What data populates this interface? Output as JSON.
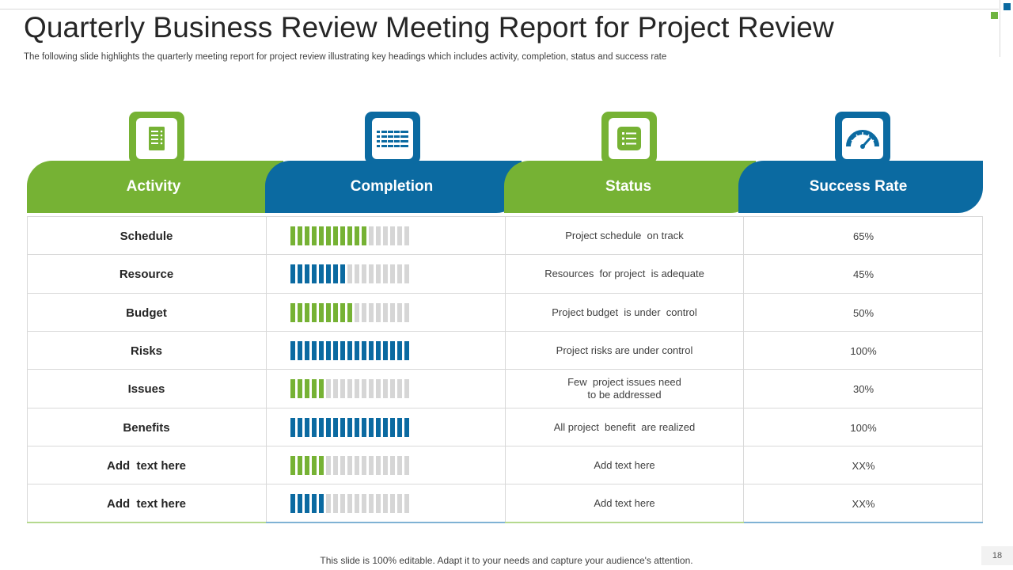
{
  "header": {
    "title": "Quarterly Business Review Meeting Report for Project Review",
    "subtitle": "The following slide highlights the quarterly meeting report for project review illustrating key headings which includes activity, completion, status and success rate"
  },
  "colors": {
    "green": "#76b234",
    "blue": "#0b6aa1",
    "empty": "#d6d6d6"
  },
  "columns": [
    {
      "label": "Activity",
      "icon": "document-list-icon",
      "color": "green"
    },
    {
      "label": "Completion",
      "icon": "progress-bars-icon",
      "color": "blue"
    },
    {
      "label": "Status",
      "icon": "checklist-icon",
      "color": "green"
    },
    {
      "label": "Success Rate",
      "icon": "speedometer-icon",
      "color": "blue"
    }
  ],
  "rows": [
    {
      "activity": "Schedule",
      "completion_fraction": 0.65,
      "bar_color": "green",
      "status": "Project schedule  on track",
      "rate": "65%"
    },
    {
      "activity": "Resource",
      "completion_fraction": 0.45,
      "bar_color": "blue",
      "status": "Resources  for project  is adequate",
      "rate": "45%"
    },
    {
      "activity": "Budget",
      "completion_fraction": 0.5,
      "bar_color": "green",
      "status": "Project budget  is under  control",
      "rate": "50%"
    },
    {
      "activity": "Risks",
      "completion_fraction": 1.0,
      "bar_color": "blue",
      "status": "Project risks are under control",
      "rate": "100%"
    },
    {
      "activity": "Issues",
      "completion_fraction": 0.3,
      "bar_color": "green",
      "status": "Few  project issues need\nto be addressed",
      "rate": "30%"
    },
    {
      "activity": "Benefits",
      "completion_fraction": 1.0,
      "bar_color": "blue",
      "status": "All project  benefit  are realized",
      "rate": "100%"
    },
    {
      "activity": "Add  text here",
      "completion_fraction": 0.3,
      "bar_color": "green",
      "status": "Add text here",
      "rate": "XX%"
    },
    {
      "activity": "Add  text here",
      "completion_fraction": 0.3,
      "bar_color": "blue",
      "status": "Add text here",
      "rate": "XX%"
    }
  ],
  "footer": {
    "note": "This slide is 100% editable. Adapt it to your needs and capture your audience's attention.",
    "page": "18"
  }
}
